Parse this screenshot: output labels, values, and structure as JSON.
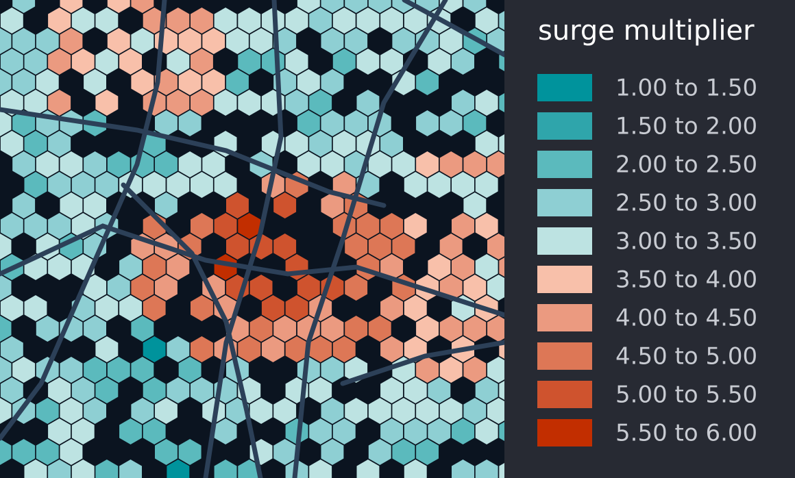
{
  "legend": {
    "title": "surge multiplier",
    "items": [
      {
        "label": "1.00 to 1.50",
        "color": "#00939c"
      },
      {
        "label": "1.50 to 2.00",
        "color": "#2fa5ab"
      },
      {
        "label": "2.00 to 2.50",
        "color": "#5bbabd"
      },
      {
        "label": "2.50 to 3.00",
        "color": "#8ecfd3"
      },
      {
        "label": "3.00 to 3.50",
        "color": "#bde3e2"
      },
      {
        "label": "3.50 to 4.00",
        "color": "#f8c0aa"
      },
      {
        "label": "4.00 to 4.50",
        "color": "#eb9a80"
      },
      {
        "label": "4.50 to 5.00",
        "color": "#dd7756"
      },
      {
        "label": "5.00 to 5.50",
        "color": "#cf532e"
      },
      {
        "label": "5.50 to 6.00",
        "color": "#c22e00"
      }
    ]
  }
}
